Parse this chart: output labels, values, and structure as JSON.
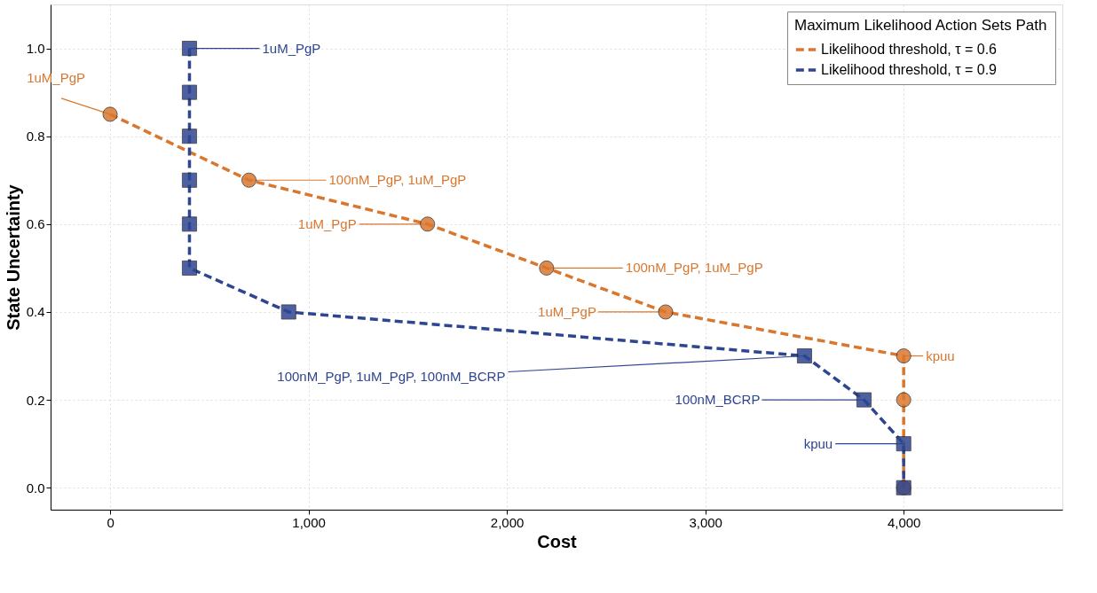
{
  "chart_data": {
    "type": "line",
    "xlabel": "Cost",
    "ylabel": "State Uncertainty",
    "legend_title": "Maximum Likelihood Action Sets Path",
    "legend": "top right",
    "grid": true,
    "line_style": "dashed",
    "xlim": [
      -300,
      4800
    ],
    "ylim": [
      -0.05,
      1.1
    ],
    "xticks": [
      0,
      {
        "value": 1000,
        "label": "1,000"
      },
      {
        "value": 2000,
        "label": "2,000"
      },
      {
        "value": 3000,
        "label": "3,000"
      },
      {
        "value": 4000,
        "label": "4,000"
      }
    ],
    "yticks": [
      {
        "value": 0,
        "label": "0.0"
      },
      0.2,
      0.4,
      0.6,
      0.8,
      {
        "value": 1,
        "label": "1.0"
      }
    ],
    "series": [
      {
        "name": "Likelihood threshold, τ = 0.6",
        "color": "#d9772f",
        "marker": "circle",
        "x": [
          0,
          700,
          1600,
          2200,
          2800,
          4000,
          4000,
          4000
        ],
        "values": [
          0.85,
          0.7,
          0.6,
          0.5,
          0.4,
          0.3,
          0.2,
          0.0
        ]
      },
      {
        "name": "Likelihood threshold, τ = 0.9",
        "color": "#2e4591",
        "marker": "square",
        "x": [
          400,
          400,
          400,
          400,
          400,
          400,
          900,
          3500,
          3800,
          4000,
          4000
        ],
        "values": [
          1.0,
          0.9,
          0.8,
          0.7,
          0.6,
          0.5,
          0.4,
          0.3,
          0.2,
          0.1,
          0.0
        ]
      }
    ],
    "annotations": [
      {
        "text": "1uM_PgP",
        "x": 0,
        "y": 0.85
      },
      {
        "text": "100nM_PgP, 1uM_PgP",
        "x": 700,
        "y": 0.7
      },
      {
        "text": "1uM_PgP",
        "x": 1600,
        "y": 0.6
      },
      {
        "text": "100nM_PgP, 1uM_PgP",
        "x": 2200,
        "y": 0.5
      },
      {
        "text": "1uM_PgP",
        "x": 2800,
        "y": 0.4
      },
      {
        "text": "kpuu",
        "x": 4000,
        "y": 0.3
      },
      {
        "text": "1uM_PgP",
        "x": 400,
        "y": 1.0
      },
      {
        "text": "100nM_PgP, 1uM_PgP, 100nM_BCRP",
        "x": 3500,
        "y": 0.3
      },
      {
        "text": "100nM_BCRP",
        "x": 3800,
        "y": 0.2
      },
      {
        "text": "kpuu",
        "x": 4000,
        "y": 0.1
      }
    ]
  }
}
